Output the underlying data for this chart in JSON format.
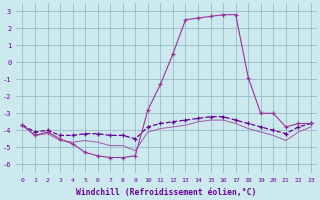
{
  "x": [
    0,
    1,
    2,
    3,
    4,
    5,
    6,
    7,
    8,
    9,
    10,
    11,
    12,
    13,
    14,
    15,
    16,
    17,
    18,
    19,
    20,
    21,
    22,
    23
  ],
  "line_main": [
    -3.7,
    -4.3,
    -4.1,
    -4.5,
    -4.8,
    -5.3,
    -5.5,
    -5.6,
    -5.6,
    -5.5,
    -2.8,
    -1.3,
    0.5,
    2.5,
    2.6,
    2.7,
    2.8,
    2.8,
    -0.9,
    -3.0,
    -3.0,
    -3.8,
    -3.6,
    -3.6
  ],
  "line_band_upper": [
    -3.7,
    -4.1,
    -4.0,
    -4.3,
    -4.3,
    -4.2,
    -4.2,
    -4.3,
    -4.3,
    -4.5,
    -3.8,
    -3.6,
    -3.5,
    -3.4,
    -3.3,
    -3.2,
    -3.2,
    -3.4,
    -3.6,
    -3.8,
    -4.0,
    -4.2,
    -3.8,
    -3.6
  ],
  "line_band_lower": [
    -3.7,
    -4.3,
    -4.2,
    -4.6,
    -4.7,
    -4.6,
    -4.7,
    -4.9,
    -4.9,
    -5.2,
    -4.1,
    -3.9,
    -3.8,
    -3.7,
    -3.5,
    -3.4,
    -3.4,
    -3.6,
    -3.9,
    -4.1,
    -4.3,
    -4.6,
    -4.1,
    -3.8
  ],
  "bg_color": "#cce9ee",
  "grid_color": "#99bbcc",
  "line_color_main": "#993399",
  "line_color_band": "#660099",
  "ylim": [
    -6.5,
    3.5
  ],
  "yticks": [
    -6,
    -5,
    -4,
    -3,
    -2,
    -1,
    0,
    1,
    2,
    3
  ],
  "xlim": [
    -0.5,
    23.5
  ],
  "xlabel": "Windchill (Refroidissement éolien,°C)"
}
